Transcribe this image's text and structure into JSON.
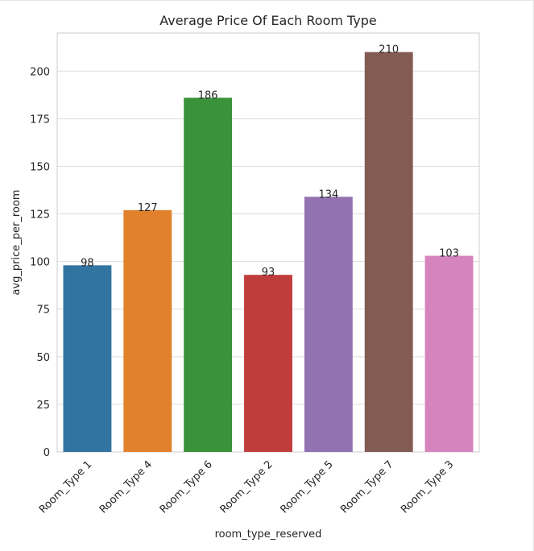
{
  "chart_data": {
    "type": "bar",
    "title": "Average Price Of Each Room Type",
    "xlabel": "room_type_reserved",
    "ylabel": "avg_price_per_room",
    "categories": [
      "Room_Type 1",
      "Room_Type 4",
      "Room_Type 6",
      "Room_Type 2",
      "Room_Type 5",
      "Room_Type 7",
      "Room_Type 3"
    ],
    "values": [
      98,
      127,
      186,
      93,
      134,
      210,
      103
    ],
    "data_labels": [
      "98",
      "127",
      "186",
      "93",
      "134",
      "210",
      "103"
    ],
    "ylim": [
      0,
      220
    ],
    "yticks": [
      0,
      25,
      50,
      75,
      100,
      125,
      150,
      175,
      200
    ],
    "colors": [
      "#3274a1",
      "#e1812c",
      "#3a923a",
      "#c03d3e",
      "#9372b2",
      "#845b53",
      "#d684bd"
    ],
    "grid": true
  }
}
